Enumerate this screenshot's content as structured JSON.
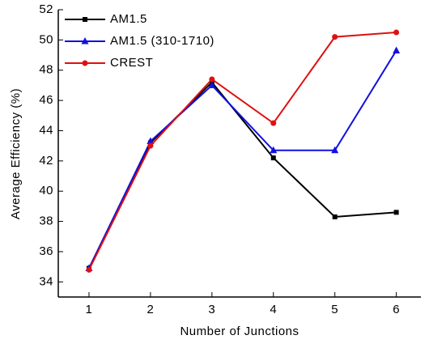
{
  "chart_data": {
    "type": "line",
    "x_label": "Number of Junctions",
    "y_label": "Average Efficiency (%)",
    "x": [
      1,
      2,
      3,
      4,
      5,
      6
    ],
    "series": [
      {
        "name": "AM1.5",
        "color": "#000000",
        "marker": "square",
        "values": [
          34.9,
          43.2,
          47.2,
          42.2,
          38.3,
          38.6
        ]
      },
      {
        "name": "AM1.5 (310-1710)",
        "color": "#1010e0",
        "marker": "triangle",
        "values": [
          34.9,
          43.3,
          47.0,
          42.7,
          42.7,
          49.3
        ]
      },
      {
        "name": "CREST",
        "color": "#e01010",
        "marker": "circle",
        "values": [
          34.8,
          43.0,
          47.4,
          44.5,
          50.2,
          50.5
        ]
      }
    ],
    "xlim": [
      0.5,
      6.4
    ],
    "xticks": [
      1,
      2,
      3,
      4,
      5,
      6
    ],
    "ylim": [
      33,
      52
    ],
    "yticks": [
      34,
      36,
      38,
      40,
      42,
      44,
      46,
      48,
      50,
      52
    ],
    "grid": false,
    "legend": "top-left"
  }
}
